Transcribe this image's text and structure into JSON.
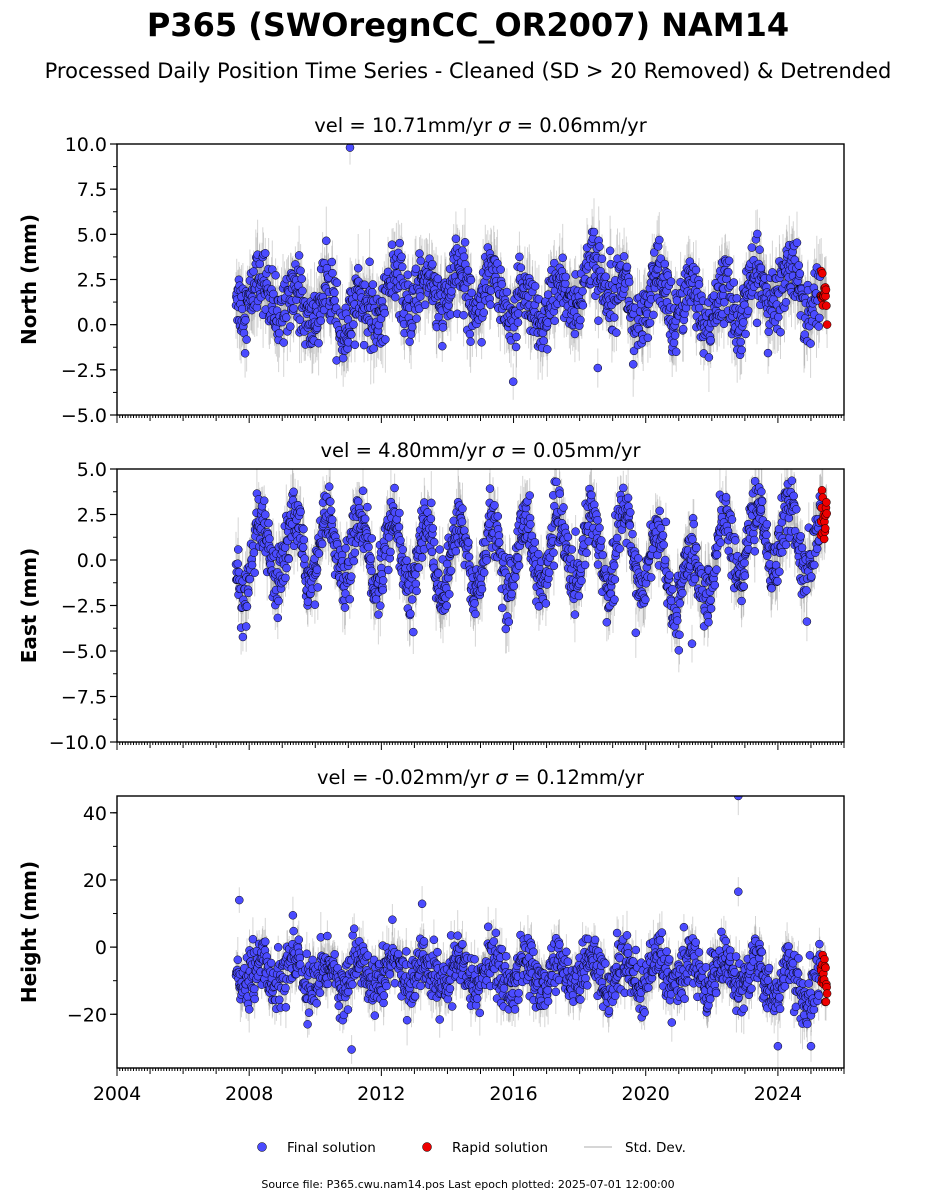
{
  "title": "P365 (SWOregnCC_OR2007) NAM14",
  "subtitle": "Processed Daily Position Time Series - Cleaned (SD > 20 Removed) & Detrended",
  "footer": "Source file: P365.cwu.nam14.pos  Last epoch plotted: 2025-07-01 12:00:00",
  "colors": {
    "final": "#4b4bff",
    "rapid": "#ee0000",
    "stddev": "#888888",
    "edge": "#000000"
  },
  "chart_data": [
    {
      "type": "scatter",
      "panel_title_prefix": "vel = 10.71mm/yr",
      "panel_title_sigma": " = 0.06mm/yr",
      "sigma_symbol": "σ",
      "ylabel": "North (mm)",
      "xlim": [
        2004.0,
        2026.0
      ],
      "ylim": [
        -5.0,
        10.0
      ],
      "yticks": [
        -5.0,
        -2.5,
        0.0,
        2.5,
        5.0,
        7.5,
        10.0
      ],
      "ytick_labels": [
        "−5.0",
        "−2.5",
        "0.0",
        "2.5",
        "5.0",
        "7.5",
        "10.0"
      ],
      "velocity_mm_per_yr": 10.71,
      "sigma_mm_per_yr": 0.06,
      "data_start": 2007.6,
      "data_end": 2025.5,
      "rapid_start": 2025.3,
      "seasonal_amplitude": 1.1,
      "mean_profile": {
        "x": [
          2007.6,
          2009.0,
          2010.5,
          2011.0,
          2012.5,
          2014.0,
          2015.5,
          2016.5,
          2018.0,
          2019.0,
          2019.6,
          2020.5,
          2022.0,
          2023.5,
          2024.5,
          2025.5
        ],
        "y": [
          2.0,
          1.3,
          0.8,
          0.2,
          1.8,
          1.9,
          2.1,
          0.2,
          2.1,
          3.0,
          0.4,
          1.8,
          0.7,
          1.8,
          2.3,
          0.6
        ]
      },
      "noise": 0.9,
      "stddev_half_width": 1.4,
      "annotated_points": [
        {
          "x": 2011.05,
          "y": 9.8
        },
        {
          "x": 2018.55,
          "y": -2.4
        }
      ]
    },
    {
      "type": "scatter",
      "panel_title_prefix": "vel = 4.80mm/yr",
      "panel_title_sigma": " = 0.05mm/yr",
      "sigma_symbol": "σ",
      "ylabel": "East (mm)",
      "xlim": [
        2004.0,
        2026.0
      ],
      "ylim": [
        -10.0,
        5.0
      ],
      "yticks": [
        -10.0,
        -7.5,
        -5.0,
        -2.5,
        0.0,
        2.5,
        5.0
      ],
      "ytick_labels": [
        "−10.0",
        "−7.5",
        "−5.0",
        "−2.5",
        "0.0",
        "2.5",
        "5.0"
      ],
      "velocity_mm_per_yr": 4.8,
      "sigma_mm_per_yr": 0.05,
      "data_start": 2007.6,
      "data_end": 2025.5,
      "rapid_start": 2025.3,
      "seasonal_amplitude": 1.9,
      "mean_profile": {
        "x": [
          2007.6,
          2009.0,
          2010.5,
          2012.0,
          2014.0,
          2016.0,
          2018.0,
          2019.6,
          2020.5,
          2021.3,
          2022.5,
          2024.0,
          2025.5
        ],
        "y": [
          -0.5,
          0.5,
          0.8,
          0.3,
          0.0,
          0.3,
          0.6,
          0.8,
          -0.5,
          -1.5,
          0.7,
          1.5,
          0.5
        ]
      },
      "noise": 0.8,
      "stddev_half_width": 1.3,
      "annotated_points": [
        {
          "x": 2021.4,
          "y": -4.6
        },
        {
          "x": 2019.7,
          "y": -4.0
        }
      ]
    },
    {
      "type": "scatter",
      "panel_title_prefix": "vel = -0.02mm/yr",
      "panel_title_sigma": " = 0.12mm/yr",
      "sigma_symbol": "σ",
      "ylabel": "Height (mm)",
      "xlim": [
        2004.0,
        2026.0
      ],
      "ylim": [
        -36.0,
        45.0
      ],
      "yticks": [
        -20,
        0,
        20,
        40
      ],
      "ytick_labels": [
        "−20",
        "0",
        "20",
        "40"
      ],
      "velocity_mm_per_yr": -0.02,
      "sigma_mm_per_yr": 0.12,
      "data_start": 2007.6,
      "data_end": 2025.5,
      "rapid_start": 2025.3,
      "seasonal_amplitude": 4.5,
      "mean_profile": {
        "x": [
          2007.6,
          2010.0,
          2013.0,
          2016.0,
          2019.0,
          2022.0,
          2025.5
        ],
        "y": [
          -7.0,
          -8.0,
          -7.5,
          -8.5,
          -8.0,
          -7.0,
          -12.0
        ]
      },
      "noise": 4.0,
      "stddev_half_width": 5.5,
      "annotated_points": [
        {
          "x": 2022.8,
          "y": 45.0
        },
        {
          "x": 2011.1,
          "y": -30.5
        },
        {
          "x": 2024.0,
          "y": -29.5
        },
        {
          "x": 2025.0,
          "y": -29.5
        },
        {
          "x": 2007.7,
          "y": 14.0
        },
        {
          "x": 2022.8,
          "y": 16.5
        }
      ]
    }
  ],
  "xticks": [
    2004,
    2008,
    2012,
    2016,
    2020,
    2024
  ],
  "xtick_labels": [
    "2004",
    "2008",
    "2012",
    "2016",
    "2020",
    "2024"
  ],
  "legend": {
    "final": "Final solution",
    "rapid": "Rapid solution",
    "stddev": "Std. Dev."
  }
}
